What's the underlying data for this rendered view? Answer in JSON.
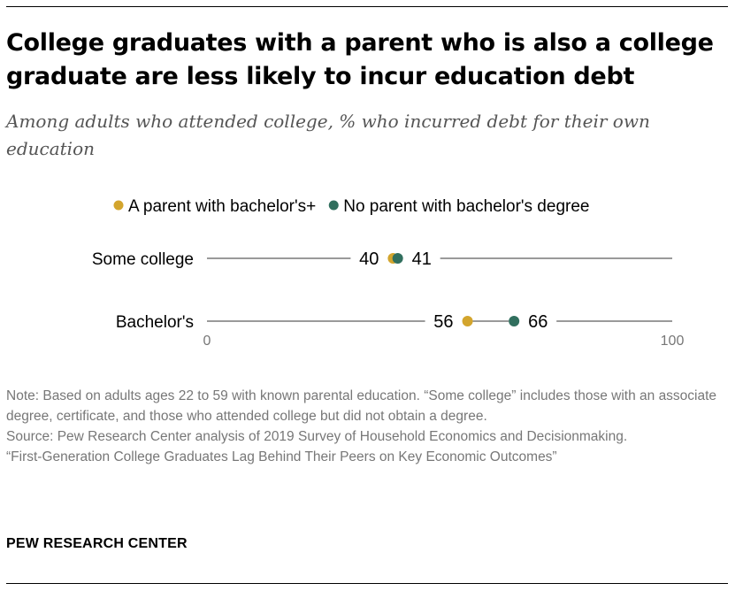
{
  "title": "College graduates with a parent who is also a college graduate are less likely to incur education debt",
  "subtitle": "Among adults who attended college, % who incurred debt for their own education",
  "colors": {
    "parent": "#d3a52d",
    "no_parent": "#316f5e",
    "track": "#9a9a9a",
    "axis_text": "#777777"
  },
  "chart_data": {
    "type": "dot",
    "categories": [
      "Some college",
      "Bachelor's"
    ],
    "series": [
      {
        "name": "A parent with bachelor's+",
        "values": [
          40,
          56
        ]
      },
      {
        "name": "No parent with bachelor's degree",
        "values": [
          41,
          66
        ]
      }
    ],
    "xlim": [
      0,
      100
    ],
    "x_ticks": [
      "0",
      "100"
    ],
    "legend_position": "top"
  },
  "notes": [
    "Note: Based on adults ages 22 to 59 with known parental education. “Some college” includes those with an associate degree, certificate, and those who attended college but did not obtain a degree.",
    "Source: Pew Research Center analysis of 2019 Survey of Household Economics and Decisionmaking.",
    "“First-Generation College Graduates Lag Behind Their Peers on Key Economic Outcomes”"
  ],
  "brand": "PEW RESEARCH CENTER"
}
